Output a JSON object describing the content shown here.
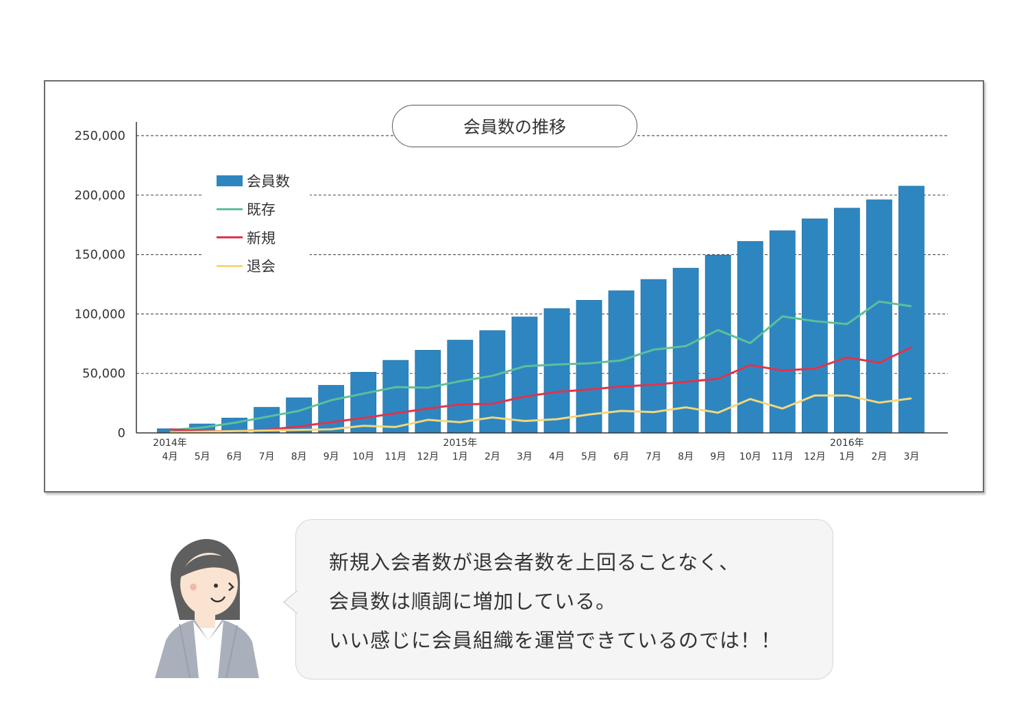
{
  "chart_data": {
    "type": "bar",
    "title": "会員数の推移",
    "ylim": [
      0,
      250000
    ],
    "yticks": [
      {
        "value": 0,
        "label": "0"
      },
      {
        "value": 50000,
        "label": "50,000"
      },
      {
        "value": 100000,
        "label": "100,000"
      },
      {
        "value": 150000,
        "label": "150,000"
      },
      {
        "value": 200000,
        "label": "200,000"
      },
      {
        "value": 250000,
        "label": "250,000"
      }
    ],
    "categories": [
      "4月",
      "5月",
      "6月",
      "7月",
      "8月",
      "9月",
      "10月",
      "11月",
      "12月",
      "1月",
      "2月",
      "3月",
      "4月",
      "5月",
      "6月",
      "7月",
      "8月",
      "9月",
      "10月",
      "11月",
      "12月",
      "1月",
      "2月",
      "3月"
    ],
    "year_labels": [
      {
        "label": "2014年",
        "index": 0
      },
      {
        "label": "2015年",
        "index": 9
      },
      {
        "label": "2016年",
        "index": 21
      }
    ],
    "legend_position": "top-left",
    "series": [
      {
        "name": "会員数",
        "kind": "bar",
        "color": "#2e86c1",
        "values": [
          3500,
          7500,
          12500,
          21500,
          29500,
          40000,
          51000,
          61000,
          69500,
          78000,
          86000,
          97500,
          104500,
          111500,
          119500,
          129000,
          138500,
          149500,
          161000,
          170000,
          180000,
          189000,
          196000,
          207500
        ]
      },
      {
        "name": "既存",
        "kind": "line",
        "color": "#5cc09a",
        "values": [
          2500,
          4500,
          8500,
          13500,
          18500,
          27500,
          33000,
          38500,
          38000,
          43500,
          48000,
          56000,
          57500,
          58500,
          61000,
          70000,
          73000,
          86500,
          75500,
          98000,
          94000,
          91500,
          110500,
          106500
        ]
      },
      {
        "name": "新規",
        "kind": "line",
        "color": "#e0334a",
        "values": [
          3000,
          1500,
          1500,
          2500,
          5500,
          9000,
          12500,
          16500,
          20500,
          24000,
          24500,
          30500,
          34500,
          36500,
          39000,
          40500,
          43000,
          45500,
          57000,
          52500,
          54000,
          63500,
          59000,
          72000
        ]
      },
      {
        "name": "退会",
        "kind": "line",
        "color": "#f3d77a",
        "values": [
          500,
          1000,
          1500,
          2000,
          2500,
          3000,
          6000,
          5000,
          11000,
          9000,
          13000,
          10000,
          11500,
          15500,
          18500,
          17500,
          21500,
          17000,
          28500,
          20500,
          31500,
          31500,
          25500,
          29000
        ]
      }
    ]
  },
  "speech": {
    "lines": [
      "新規入会者数が退会者数を上回ることなく、",
      "会員数は順調に増加している。",
      "いい感じに会員組織を運営できているのでは！！"
    ]
  }
}
